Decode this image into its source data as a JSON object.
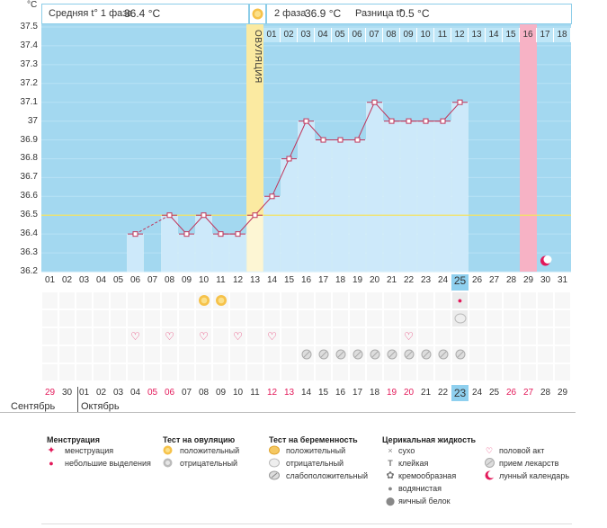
{
  "header": {
    "unit": "°C",
    "phase1_label": "Средняя t° 1 фаза",
    "phase1_value": "36.4 °C",
    "phase2_label": "2 фаза",
    "phase2_value": "36.9 °C",
    "diff_label": "Разница t°",
    "diff_value": "0.5 °C",
    "sun_icon": "sun-icon"
  },
  "ovulation_label": "ОВУЛЯЦИЯ",
  "top_days": [
    "01",
    "02",
    "03",
    "04",
    "05",
    "06",
    "07",
    "08",
    "09",
    "10",
    "11",
    "12",
    "13",
    "14",
    "15",
    "16",
    "17",
    "18"
  ],
  "colors": {
    "bg_blue": "#a3d8f0",
    "bar": "#cde9fa",
    "ovulation": "#fbeaa1",
    "pink": "#f7b2c5",
    "line": "#c0345a",
    "hl": "#8fd0ef"
  },
  "chart_data": {
    "type": "line",
    "title": "",
    "xlabel": "",
    "ylabel": "°C",
    "ylim": [
      36.2,
      37.5
    ],
    "yticks": [
      "37.5",
      "37.4",
      "37.3",
      "37.2",
      "37.1",
      "37",
      "36.9",
      "36.8",
      "36.7",
      "36.6",
      "36.5",
      "36.4",
      "36.3",
      "36.2"
    ],
    "coverline": 36.5,
    "ovulation_day": 13,
    "x": [
      6,
      8,
      9,
      10,
      11,
      12,
      13,
      14,
      15,
      16,
      17,
      18,
      19,
      20,
      21,
      22,
      23,
      24,
      25
    ],
    "values": [
      36.4,
      36.5,
      36.4,
      36.5,
      36.4,
      36.4,
      36.5,
      36.6,
      36.8,
      37.0,
      36.9,
      36.9,
      36.9,
      37.1,
      37.0,
      37.0,
      37.0,
      37.0,
      37.1
    ],
    "gap_dashed": [
      6,
      8
    ],
    "empty_days": [
      1,
      2,
      3,
      4,
      5,
      7,
      26,
      27,
      28,
      29,
      30,
      31
    ],
    "highlight_day": 25,
    "pink_day": 29
  },
  "cycle_days": [
    "01",
    "02",
    "03",
    "04",
    "05",
    "06",
    "07",
    "08",
    "09",
    "10",
    "11",
    "12",
    "13",
    "14",
    "15",
    "16",
    "17",
    "18",
    "19",
    "20",
    "21",
    "22",
    "23",
    "24",
    "25",
    "26",
    "27",
    "28",
    "29",
    "30",
    "31"
  ],
  "calendar_days": [
    {
      "d": "29",
      "red": true
    },
    {
      "d": "30",
      "red": false
    },
    {
      "d": "01",
      "red": false
    },
    {
      "d": "02",
      "red": false
    },
    {
      "d": "03",
      "red": false
    },
    {
      "d": "04",
      "red": false
    },
    {
      "d": "05",
      "red": true
    },
    {
      "d": "06",
      "red": true
    },
    {
      "d": "07",
      "red": false
    },
    {
      "d": "08",
      "red": false
    },
    {
      "d": "09",
      "red": false
    },
    {
      "d": "10",
      "red": false
    },
    {
      "d": "11",
      "red": false
    },
    {
      "d": "12",
      "red": true
    },
    {
      "d": "13",
      "red": true
    },
    {
      "d": "14",
      "red": false
    },
    {
      "d": "15",
      "red": false
    },
    {
      "d": "16",
      "red": false
    },
    {
      "d": "17",
      "red": false
    },
    {
      "d": "18",
      "red": false
    },
    {
      "d": "19",
      "red": true
    },
    {
      "d": "20",
      "red": true
    },
    {
      "d": "21",
      "red": false
    },
    {
      "d": "22",
      "red": false
    },
    {
      "d": "23",
      "red": false
    },
    {
      "d": "24",
      "red": false
    },
    {
      "d": "25",
      "red": false
    },
    {
      "d": "26",
      "red": true
    },
    {
      "d": "27",
      "red": true
    },
    {
      "d": "28",
      "red": false
    },
    {
      "d": "29",
      "red": false
    }
  ],
  "months": {
    "prev": "Сентябрь",
    "next": "Октябрь"
  },
  "marks": {
    "ovulation_positive_days": [
      10,
      11
    ],
    "menstruation_small_days": [
      25
    ],
    "pregnancy_negative_days": [
      25
    ],
    "sex_days": [
      6,
      8,
      10,
      12,
      14,
      22
    ],
    "medicine_days": [
      16,
      17,
      18,
      19,
      20,
      21,
      22,
      23,
      24,
      25
    ],
    "moon_day": 30
  },
  "legend": {
    "menstruation": {
      "title": "Менструация",
      "items": [
        "менструация",
        "небольшие выделения"
      ]
    },
    "ovulation_test": {
      "title": "Тест на овуляцию",
      "items": [
        "положительный",
        "отрицательный"
      ]
    },
    "pregnancy_test": {
      "title": "Тест на беременность",
      "items": [
        "положительный",
        "отрицательный",
        "слабоположительный"
      ]
    },
    "cervical": {
      "title": "Церикальная жидкость",
      "items": [
        "сухо",
        "клейкая",
        "кремообразная",
        "водянистая",
        "яичный белок"
      ]
    },
    "other": {
      "items": [
        "половой акт",
        "прием лекарств",
        "лунный календарь"
      ]
    }
  }
}
